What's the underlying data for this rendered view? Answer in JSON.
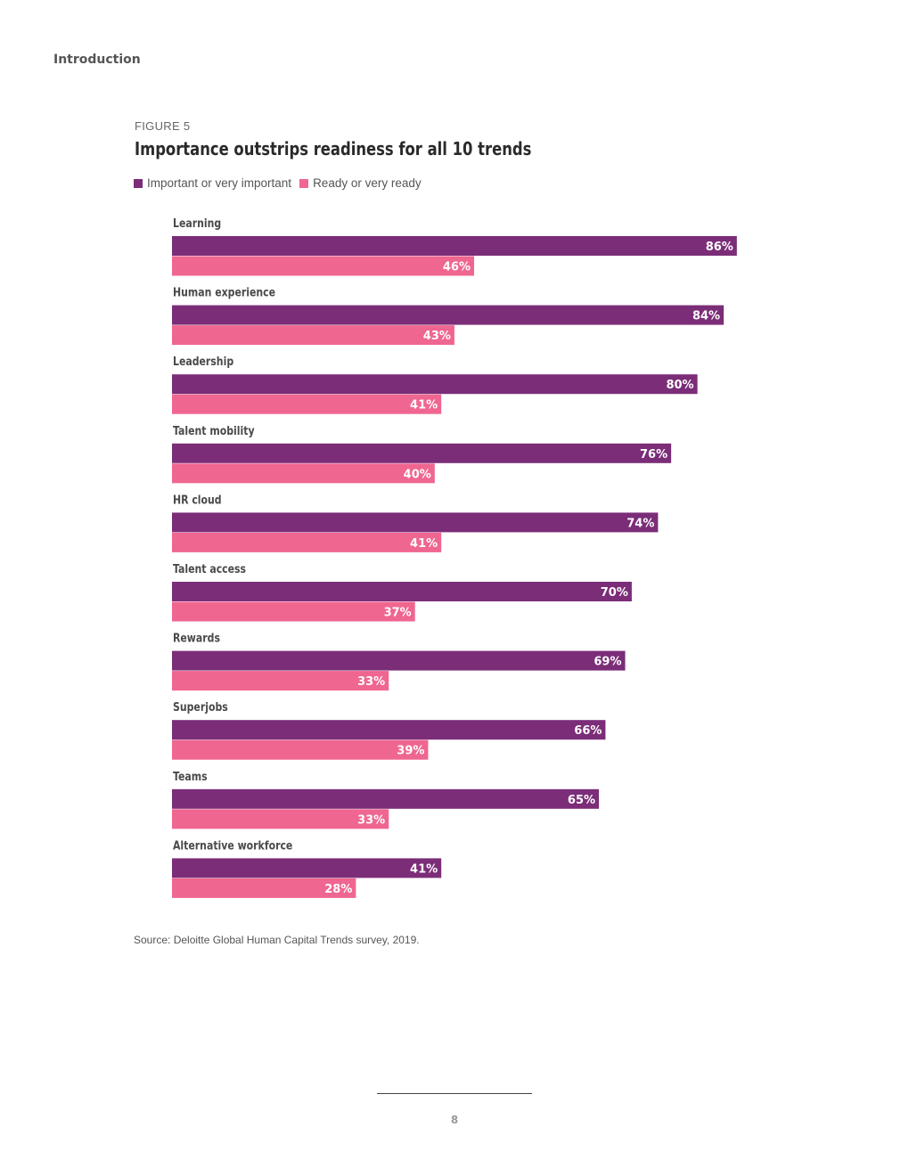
{
  "page": {
    "section_label": "Introduction",
    "source": "Source: Deloitte Global Human Capital Trends survey, 2019.",
    "page_number": "8"
  },
  "figure": {
    "label": "FIGURE 5",
    "title": "Importance outstrips readiness for all 10 trends"
  },
  "chart_data": {
    "type": "bar",
    "orientation": "horizontal",
    "title": "Importance outstrips readiness for all 10 trends",
    "categories": [
      "Learning",
      "Human experience",
      "Leadership",
      "Talent mobility",
      "HR cloud",
      "Talent access",
      "Rewards",
      "Superjobs",
      "Teams",
      "Alternative workforce"
    ],
    "series": [
      {
        "name": "Important or very important",
        "color": "#7b2d78",
        "values": [
          86,
          84,
          80,
          76,
          74,
          70,
          69,
          66,
          65,
          41
        ],
        "labels": [
          "86%",
          "84%",
          "80%",
          "76%",
          "74%",
          "70%",
          "69%",
          "66%",
          "65%",
          "41%"
        ]
      },
      {
        "name": "Ready or very ready",
        "color": "#ef6690",
        "values": [
          46,
          43,
          41,
          40,
          41,
          37,
          33,
          39,
          33,
          28
        ],
        "labels": [
          "46%",
          "43%",
          "41%",
          "40%",
          "41%",
          "37%",
          "33%",
          "39%",
          "33%",
          "28%"
        ]
      }
    ],
    "unit": "%",
    "xlim": [
      0,
      100
    ],
    "grid": false,
    "legend_position": "top-left"
  }
}
